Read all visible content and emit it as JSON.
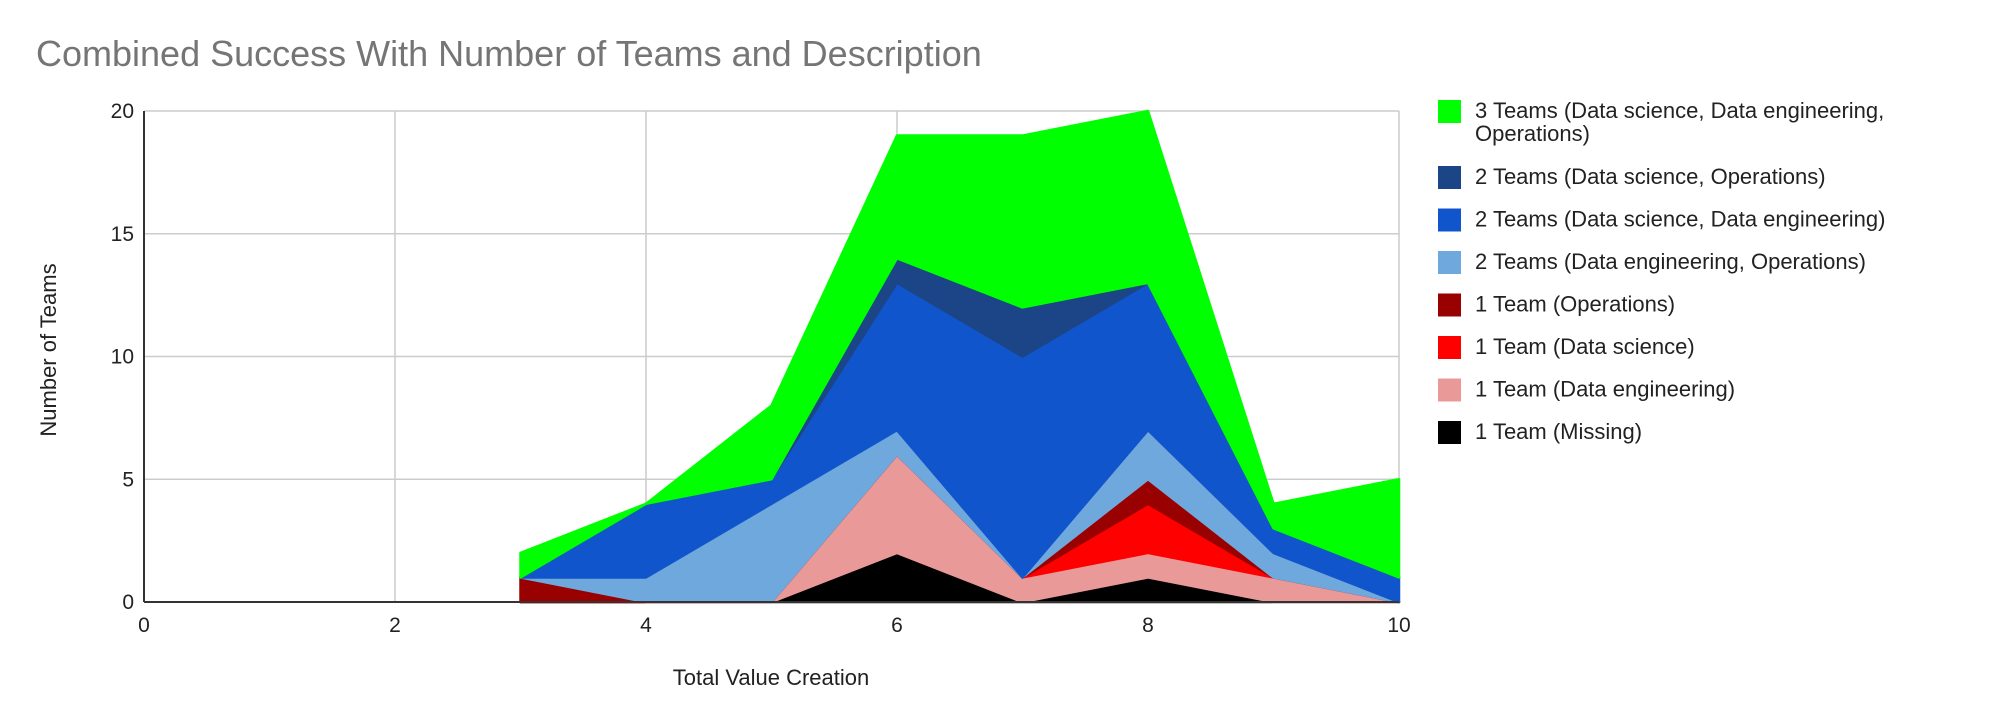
{
  "chart_data": {
    "type": "area",
    "stacked": true,
    "title": "Combined Success With Number of Teams and Description",
    "xlabel": "Total Value Creation",
    "ylabel": "Number of Teams",
    "xlim": [
      0,
      10
    ],
    "ylim": [
      0,
      20
    ],
    "x_ticks": [
      0,
      2,
      4,
      6,
      8,
      10
    ],
    "y_ticks": [
      0,
      5,
      10,
      15,
      20
    ],
    "grid": true,
    "legend_position": "right",
    "x": [
      3,
      4,
      5,
      6,
      7,
      8,
      9,
      10
    ],
    "series": [
      {
        "name": "1 Team (Missing)",
        "color": "#000000",
        "values": [
          0,
          0,
          0,
          2,
          0,
          1,
          0,
          0
        ]
      },
      {
        "name": "1 Team (Data engineering)",
        "color": "#ea9999",
        "values": [
          0,
          0,
          0,
          4,
          1,
          1,
          1,
          0
        ]
      },
      {
        "name": "1 Team (Data science)",
        "color": "#ff0000",
        "values": [
          0,
          0,
          0,
          0,
          0,
          2,
          0,
          0
        ]
      },
      {
        "name": "1 Team (Operations)",
        "color": "#990000",
        "values": [
          1,
          0,
          0,
          0,
          0,
          1,
          0,
          0
        ]
      },
      {
        "name": "2 Teams (Data engineering, Operations)",
        "color": "#6fa8dc",
        "values": [
          0,
          1,
          4,
          1,
          0,
          2,
          1,
          0
        ]
      },
      {
        "name": "2 Teams (Data science, Data engineering)",
        "color": "#1155cc",
        "values": [
          0,
          3,
          1,
          6,
          9,
          6,
          1,
          1
        ]
      },
      {
        "name": "2 Teams (Data science, Operations)",
        "color": "#1c4587",
        "values": [
          0,
          0,
          0,
          1,
          2,
          0,
          0,
          0
        ]
      },
      {
        "name": "3 Teams (Data science, Data engineering, Operations)",
        "color": "#00ff00",
        "values": [
          1,
          0,
          3,
          5,
          7,
          7,
          1,
          4
        ]
      }
    ],
    "legend": [
      {
        "lines": [
          "3 Teams (Data science, Data engineering,",
          "Operations)"
        ],
        "color": "#00ff00"
      },
      {
        "lines": [
          "2 Teams (Data science, Operations)"
        ],
        "color": "#1c4587"
      },
      {
        "lines": [
          "2 Teams (Data science, Data engineering)"
        ],
        "color": "#1155cc"
      },
      {
        "lines": [
          "2 Teams (Data engineering, Operations)"
        ],
        "color": "#6fa8dc"
      },
      {
        "lines": [
          "1 Team (Operations)"
        ],
        "color": "#990000"
      },
      {
        "lines": [
          "1 Team (Data science)"
        ],
        "color": "#ff0000"
      },
      {
        "lines": [
          "1 Team (Data engineering)"
        ],
        "color": "#ea9999"
      },
      {
        "lines": [
          "1 Team (Missing)"
        ],
        "color": "#000000"
      }
    ]
  }
}
